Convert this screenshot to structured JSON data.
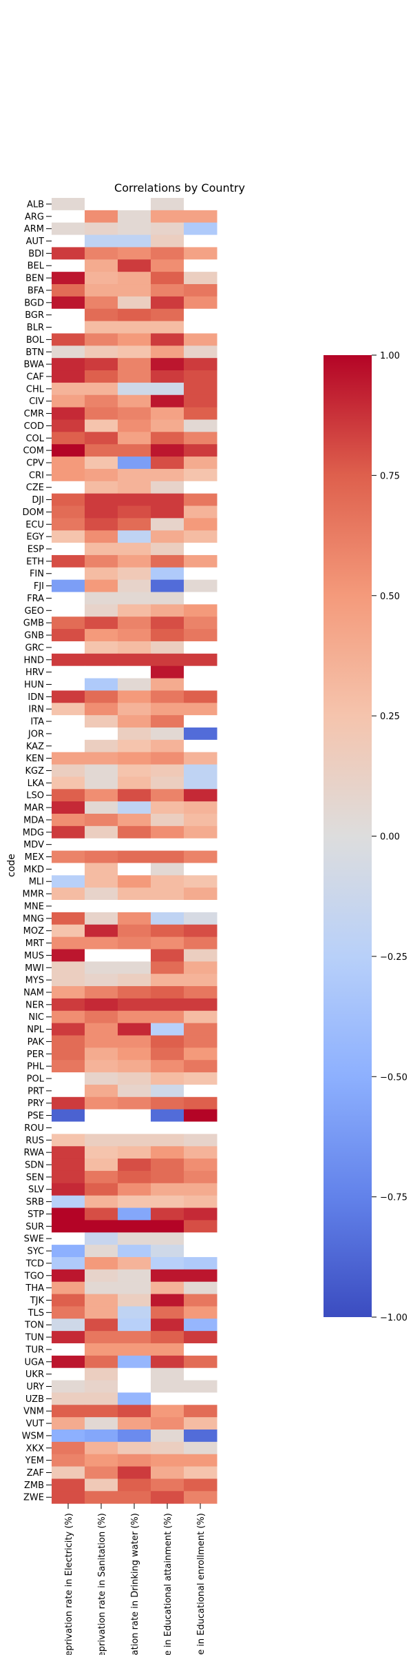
{
  "chart_data": {
    "type": "heatmap",
    "title": "Correlations by Country",
    "ylabel": "code",
    "columns": [
      "Deprivation rate in Electricity (%)",
      "Deprivation rate in Sanitation (%)",
      "Deprivation rate in Drinking water (%)",
      "Deprivation rate in Educational attainment (%)",
      "Deprivation rate in Educational enrollment (%)"
    ],
    "rows": [
      "ALB",
      "ARG",
      "ARM",
      "AUT",
      "BDI",
      "BEL",
      "BEN",
      "BFA",
      "BGD",
      "BGR",
      "BLR",
      "BOL",
      "BTN",
      "BWA",
      "CAF",
      "CHL",
      "CIV",
      "CMR",
      "COD",
      "COL",
      "COM",
      "CPV",
      "CRI",
      "CZE",
      "DJI",
      "DOM",
      "ECU",
      "EGY",
      "ESP",
      "ETH",
      "FIN",
      "FJI",
      "FRA",
      "GEO",
      "GMB",
      "GNB",
      "GRC",
      "HND",
      "HRV",
      "HUN",
      "IDN",
      "IRN",
      "ITA",
      "JOR",
      "KAZ",
      "KEN",
      "KGZ",
      "LKA",
      "LSO",
      "MAR",
      "MDA",
      "MDG",
      "MDV",
      "MEX",
      "MKD",
      "MLI",
      "MMR",
      "MNE",
      "MNG",
      "MOZ",
      "MRT",
      "MUS",
      "MWI",
      "MYS",
      "NAM",
      "NER",
      "NIC",
      "NPL",
      "PAK",
      "PER",
      "PHL",
      "POL",
      "PRT",
      "PRY",
      "PSE",
      "ROU",
      "RUS",
      "RWA",
      "SDN",
      "SEN",
      "SLV",
      "SRB",
      "STP",
      "SUR",
      "SWE",
      "SYC",
      "TCD",
      "TGO",
      "THA",
      "TJK",
      "TLS",
      "TON",
      "TUN",
      "TUR",
      "UGA",
      "UKR",
      "URY",
      "UZB",
      "VNM",
      "VUT",
      "WSM",
      "XKX",
      "YEM",
      "ZAF",
      "ZMB",
      "ZWE"
    ],
    "values": [
      [
        0.05,
        null,
        null,
        0.05,
        null
      ],
      [
        null,
        0.55,
        0.05,
        0.45,
        0.45
      ],
      [
        0.05,
        0.1,
        0.05,
        0.1,
        -0.3
      ],
      [
        null,
        -0.2,
        -0.2,
        0.15,
        null
      ],
      [
        0.85,
        0.6,
        0.55,
        0.65,
        0.45
      ],
      [
        null,
        0.4,
        0.85,
        0.55,
        null
      ],
      [
        0.95,
        0.35,
        0.4,
        0.75,
        0.15
      ],
      [
        0.7,
        0.4,
        0.4,
        0.6,
        0.65
      ],
      [
        0.95,
        0.6,
        0.15,
        0.85,
        0.55
      ],
      [
        null,
        0.7,
        0.75,
        0.7,
        null
      ],
      [
        null,
        0.3,
        0.3,
        0.3,
        null
      ],
      [
        0.8,
        0.6,
        0.5,
        0.85,
        0.45
      ],
      [
        0.05,
        0.2,
        0.25,
        0.45,
        0.1
      ],
      [
        0.9,
        0.85,
        0.6,
        0.95,
        0.85
      ],
      [
        0.9,
        0.75,
        0.6,
        0.85,
        0.8
      ],
      [
        0.35,
        0.35,
        -0.1,
        -0.1,
        0.8
      ],
      [
        0.45,
        0.6,
        0.45,
        0.95,
        0.8
      ],
      [
        0.9,
        0.65,
        0.6,
        0.45,
        0.75
      ],
      [
        0.85,
        0.25,
        0.55,
        0.4,
        0.05
      ],
      [
        0.75,
        0.8,
        0.45,
        0.75,
        0.6
      ],
      [
        1.0,
        0.7,
        0.7,
        0.95,
        0.85
      ],
      [
        0.5,
        0.25,
        -0.6,
        0.8,
        0.4
      ],
      [
        0.5,
        0.45,
        0.35,
        0.35,
        0.25
      ],
      [
        null,
        0.3,
        0.35,
        0.1,
        null
      ],
      [
        0.75,
        0.85,
        0.85,
        0.85,
        0.65
      ],
      [
        0.7,
        0.85,
        0.8,
        0.85,
        0.35
      ],
      [
        0.65,
        0.8,
        0.7,
        0.1,
        0.5
      ],
      [
        0.25,
        0.55,
        -0.2,
        0.4,
        0.3
      ],
      [
        null,
        0.3,
        0.3,
        0.15,
        null
      ],
      [
        0.8,
        0.6,
        0.45,
        0.7,
        0.45
      ],
      [
        null,
        0.3,
        0.2,
        -0.3,
        null
      ],
      [
        -0.6,
        0.5,
        0.1,
        -0.85,
        0.05
      ],
      [
        null,
        0.05,
        0.05,
        0.05,
        null
      ],
      [
        null,
        0.1,
        0.3,
        0.4,
        0.5
      ],
      [
        0.7,
        0.8,
        0.6,
        0.8,
        0.6
      ],
      [
        0.8,
        0.5,
        0.55,
        0.75,
        0.65
      ],
      [
        null,
        0.25,
        0.3,
        0.15,
        null
      ],
      [
        0.85,
        0.85,
        0.85,
        0.85,
        0.85
      ],
      [
        null,
        null,
        null,
        0.95,
        null
      ],
      [
        null,
        -0.3,
        0.05,
        0.4,
        null
      ],
      [
        0.85,
        0.7,
        0.5,
        0.65,
        0.75
      ],
      [
        0.25,
        0.55,
        0.35,
        0.45,
        0.45
      ],
      [
        null,
        0.2,
        0.45,
        0.65,
        null
      ],
      [
        null,
        null,
        0.15,
        0.05,
        -0.85
      ],
      [
        null,
        0.15,
        0.25,
        0.35,
        null
      ],
      [
        0.45,
        0.45,
        0.5,
        0.55,
        0.35
      ],
      [
        0.15,
        0.05,
        0.25,
        0.2,
        -0.2
      ],
      [
        0.25,
        0.05,
        0.3,
        0.15,
        -0.2
      ],
      [
        0.75,
        0.55,
        0.8,
        0.6,
        0.9
      ],
      [
        0.9,
        0.05,
        -0.2,
        0.3,
        0.35
      ],
      [
        0.55,
        0.6,
        0.45,
        0.15,
        0.3
      ],
      [
        0.85,
        0.15,
        0.7,
        0.55,
        0.4
      ],
      [
        null,
        null,
        null,
        null,
        null
      ],
      [
        0.6,
        0.65,
        0.7,
        0.7,
        0.6
      ],
      [
        null,
        0.3,
        null,
        0.05,
        null
      ],
      [
        -0.25,
        0.3,
        0.5,
        0.3,
        0.25
      ],
      [
        0.3,
        0.1,
        0.3,
        0.3,
        0.4
      ],
      [
        null,
        null,
        null,
        null,
        null
      ],
      [
        0.75,
        0.1,
        0.55,
        -0.2,
        -0.05
      ],
      [
        0.25,
        0.9,
        0.65,
        0.75,
        0.8
      ],
      [
        0.55,
        0.55,
        0.6,
        0.55,
        0.65
      ],
      [
        0.95,
        null,
        null,
        0.8,
        0.15
      ],
      [
        0.15,
        0.05,
        0.05,
        0.7,
        0.4
      ],
      [
        0.15,
        0.1,
        0.15,
        0.35,
        0.35
      ],
      [
        0.45,
        0.6,
        0.7,
        0.75,
        0.65
      ],
      [
        0.85,
        0.9,
        0.85,
        0.85,
        0.85
      ],
      [
        0.55,
        0.65,
        0.55,
        0.55,
        0.3
      ],
      [
        0.85,
        0.55,
        0.9,
        -0.25,
        0.65
      ],
      [
        0.7,
        0.55,
        0.55,
        0.75,
        0.65
      ],
      [
        0.7,
        0.4,
        0.5,
        0.7,
        0.5
      ],
      [
        0.65,
        0.35,
        0.4,
        0.55,
        0.65
      ],
      [
        null,
        0.1,
        0.15,
        0.3,
        0.25
      ],
      [
        null,
        0.4,
        0.1,
        -0.1,
        null
      ],
      [
        0.85,
        0.55,
        0.6,
        0.7,
        0.75
      ],
      [
        -0.9,
        null,
        null,
        -0.85,
        1.0
      ],
      [
        null,
        null,
        null,
        null,
        null
      ],
      [
        0.25,
        0.15,
        0.15,
        0.15,
        0.1
      ],
      [
        0.85,
        0.25,
        0.3,
        0.5,
        0.35
      ],
      [
        0.85,
        0.3,
        0.8,
        0.7,
        0.55
      ],
      [
        0.85,
        0.65,
        0.75,
        0.7,
        0.6
      ],
      [
        0.9,
        0.75,
        0.55,
        0.4,
        0.4
      ],
      [
        -0.25,
        0.35,
        0.25,
        0.25,
        0.3
      ],
      [
        1.0,
        0.8,
        -0.55,
        0.85,
        0.9
      ],
      [
        1.0,
        1.0,
        1.0,
        1.0,
        0.8
      ],
      [
        null,
        -0.15,
        0.05,
        0.05,
        null
      ],
      [
        -0.5,
        0.05,
        -0.3,
        -0.1,
        null
      ],
      [
        -0.3,
        0.5,
        0.35,
        -0.25,
        -0.3
      ],
      [
        0.95,
        0.1,
        0.05,
        0.95,
        0.95
      ],
      [
        0.45,
        0.05,
        0.05,
        0.35,
        0.05
      ],
      [
        0.75,
        0.4,
        0.15,
        0.95,
        0.65
      ],
      [
        0.65,
        0.4,
        -0.2,
        0.7,
        0.5
      ],
      [
        -0.1,
        0.8,
        -0.25,
        0.9,
        -0.45
      ],
      [
        0.9,
        0.65,
        0.65,
        0.75,
        0.85
      ],
      [
        null,
        0.5,
        0.5,
        0.5,
        null
      ],
      [
        0.95,
        0.7,
        -0.45,
        0.85,
        0.7
      ],
      [
        null,
        0.15,
        null,
        0.05,
        null
      ],
      [
        0.05,
        0.1,
        null,
        0.05,
        0.05
      ],
      [
        0.15,
        0.15,
        -0.45,
        null,
        null
      ],
      [
        0.75,
        0.75,
        0.8,
        0.5,
        0.7
      ],
      [
        0.4,
        0.05,
        0.45,
        0.55,
        0.3
      ],
      [
        -0.5,
        -0.55,
        -0.7,
        0.05,
        -0.85
      ],
      [
        0.65,
        0.35,
        0.2,
        0.15,
        0.05
      ],
      [
        0.6,
        0.5,
        0.55,
        0.5,
        0.5
      ],
      [
        0.2,
        0.6,
        0.85,
        0.4,
        0.25
      ],
      [
        0.8,
        0.2,
        0.75,
        0.65,
        0.75
      ],
      [
        0.8,
        0.7,
        0.7,
        0.8,
        0.6
      ]
    ],
    "colorbar": {
      "range": [
        -1.0,
        1.0
      ],
      "ticks": [
        "−1.00",
        "−0.75",
        "−0.50",
        "−0.25",
        "0.00",
        "0.25",
        "0.50",
        "0.75",
        "1.00"
      ],
      "tick_values": [
        -1.0,
        -0.75,
        -0.5,
        -0.25,
        0.0,
        0.25,
        0.5,
        0.75,
        1.0
      ],
      "colormap": "coolwarm"
    },
    "missing_color": "#ffffff"
  }
}
